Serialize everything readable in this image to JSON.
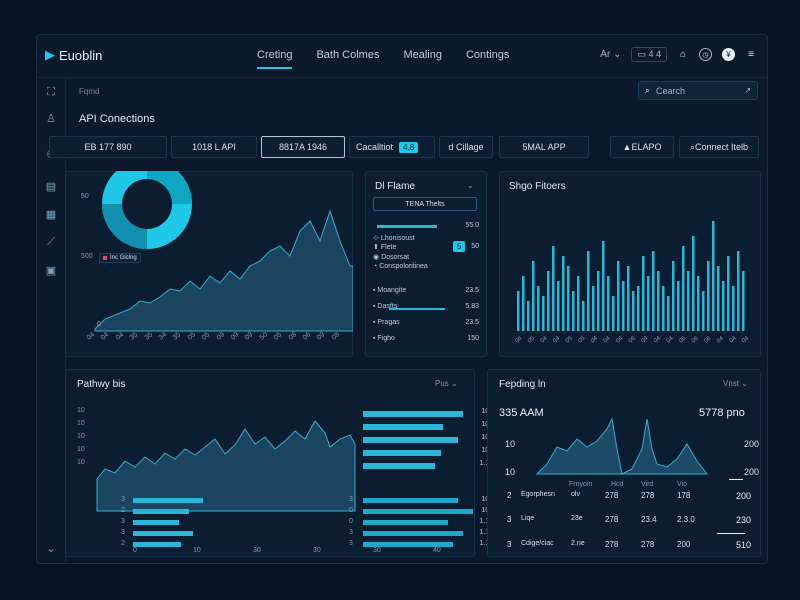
{
  "app": {
    "name": "Euoblin"
  },
  "nav": {
    "tabs": [
      "Creting",
      "Bath Colmes",
      "Mealing",
      "Contings"
    ]
  },
  "toolbar": {
    "lang": "Ar",
    "badge": "4 4"
  },
  "breadcrumb": "Fqmd",
  "page_title": "API Conections",
  "search": {
    "placeholder": "Cearch"
  },
  "summary_boxes": [
    "EB 177 890",
    "1018 L API",
    "8817A 1946",
    "Cacalltiot",
    "d Cillage",
    "5MAL APP"
  ],
  "summary_chip": "4.8",
  "buttons": {
    "api": "ELAPO",
    "connect": "Connect Itelb"
  },
  "panel_area": {
    "y_labels": [
      "50",
      "500",
      "0"
    ],
    "legend": "Inc Glclng",
    "x_labels": [
      "04",
      "04",
      "04",
      "35",
      "35",
      "34",
      "35",
      "05",
      "05",
      "09",
      "09",
      "09",
      "50",
      "05",
      "08",
      "06",
      "09",
      "08"
    ]
  },
  "panel_dl": {
    "title": "Dl Flame",
    "search_value": "TENA Thelts",
    "items": [
      {
        "label": "Lhonisoust",
        "value": "55.0"
      },
      {
        "label": "Flete",
        "value": "50"
      },
      {
        "label": "Dosorsat",
        "value": ""
      },
      {
        "label": "Conspoloritinea",
        "value": ""
      }
    ],
    "list": [
      {
        "label": "Moangite",
        "value": "23.5"
      },
      {
        "label": "Dasfts",
        "value": "5.83"
      },
      {
        "label": "Pragas",
        "value": "23.5"
      },
      {
        "label": "Figho",
        "value": "150"
      }
    ],
    "chip": "5"
  },
  "panel_bars": {
    "title": "Shgo Fitoers",
    "x_labels": [
      "04",
      "05",
      "04",
      "04",
      "05",
      "05",
      "04",
      "04",
      "04",
      "06",
      "04",
      "04",
      "04",
      "06",
      "06",
      "06",
      "04",
      "04",
      "04"
    ]
  },
  "panel_pathway": {
    "title": "Pathwy bis",
    "dropdown": "Pus",
    "y_labels": [
      "10",
      "10",
      "10",
      "10",
      "10"
    ],
    "right_values": [
      "100",
      "100",
      "100",
      "100",
      "1.16"
    ],
    "bottom_left_labels": [
      "3",
      "2",
      "3",
      "3",
      "2"
    ],
    "bottom_mid_labels": [
      "3",
      "0",
      "0",
      "3",
      "3"
    ],
    "bottom_right_values": [
      "100",
      "105",
      "1.10",
      "1.10",
      "1.10"
    ],
    "x_labels": [
      "0",
      "10",
      "30",
      "30",
      "30",
      "40"
    ]
  },
  "panel_pending": {
    "title": "Fepding ln",
    "dropdown": "Vnst",
    "left_big": "335 AAM",
    "right_big": "5778 pno",
    "y_labels": [
      "10",
      "10"
    ],
    "right_values": [
      "200",
      "200"
    ],
    "col_headers": [
      "Frnyoin",
      "Hcd",
      "Vird",
      "Vio"
    ],
    "rows": [
      {
        "idx": "2",
        "name": "Egorphesn",
        "a": "olv",
        "b": "278",
        "c": "278",
        "d": "178",
        "total": "200"
      },
      {
        "idx": "3",
        "name": "Liqe",
        "a": "23e",
        "b": "278",
        "c": "23.4",
        "d": "2.3.0",
        "total": "230"
      },
      {
        "idx": "3",
        "name": "Cdige/ciac",
        "a": "2.ne",
        "b": "278",
        "c": "278",
        "d": "200",
        "total": "510"
      }
    ]
  },
  "colors": {
    "bg": "#071322",
    "panel": "#0b1d30",
    "accent": "#1ec8e6",
    "fill": "#1d4a66",
    "bar": "#2bb5d6"
  }
}
